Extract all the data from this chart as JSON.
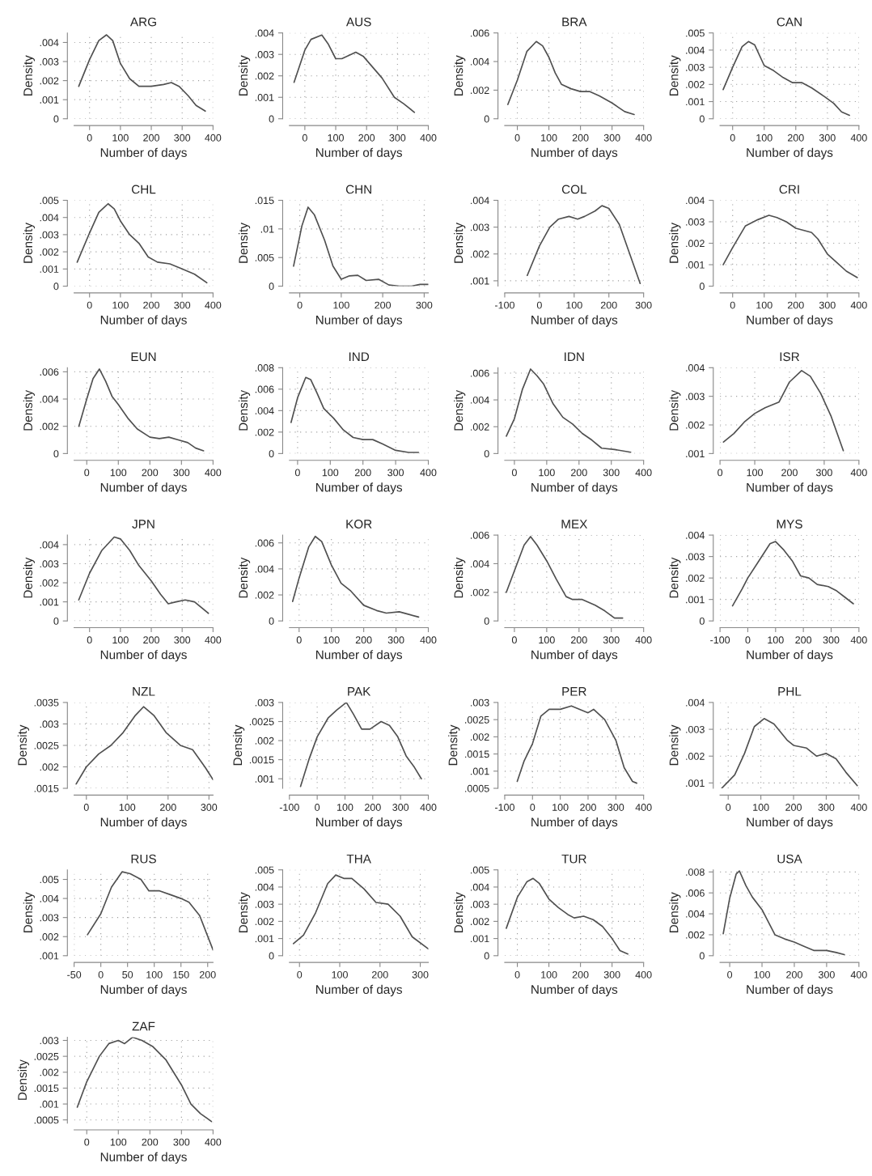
{
  "chart_data": [
    {
      "type": "line",
      "title": "ARG",
      "xlabel": "Number of days",
      "ylabel": "Density",
      "color": "#505050",
      "grid": true,
      "xlim": [
        -50,
        400
      ],
      "ylim": [
        0,
        0.0045
      ],
      "xticks": [
        0,
        100,
        200,
        300,
        400
      ],
      "yticks": [
        0,
        {
          "value": 0.001,
          "label": ".001"
        },
        {
          "value": 0.002,
          "label": ".002"
        },
        {
          "value": 0.003,
          "label": ".003"
        },
        {
          "value": 0.004,
          "label": ".004"
        }
      ],
      "x": [
        -35,
        0,
        30,
        55,
        75,
        100,
        130,
        160,
        200,
        240,
        265,
        290,
        320,
        345,
        375
      ],
      "values": [
        0.0017,
        0.0031,
        0.0041,
        0.0044,
        0.0041,
        0.0029,
        0.0021,
        0.0017,
        0.0017,
        0.0018,
        0.0019,
        0.0017,
        0.0012,
        0.0007,
        0.0004
      ]
    },
    {
      "type": "line",
      "title": "AUS",
      "xlabel": "Number of days",
      "ylabel": "Density",
      "color": "#505050",
      "grid": true,
      "xlim": [
        -50,
        400
      ],
      "ylim": [
        0,
        0.004
      ],
      "xticks": [
        0,
        100,
        200,
        300,
        400
      ],
      "yticks": [
        0,
        {
          "value": 0.001,
          "label": ".001"
        },
        {
          "value": 0.002,
          "label": ".002"
        },
        {
          "value": 0.003,
          "label": ".003"
        },
        {
          "value": 0.004,
          "label": ".004"
        }
      ],
      "x": [
        -35,
        0,
        20,
        55,
        75,
        100,
        120,
        165,
        190,
        220,
        250,
        290,
        320,
        355
      ],
      "values": [
        0.0017,
        0.0032,
        0.0037,
        0.0039,
        0.0035,
        0.0028,
        0.0028,
        0.0031,
        0.0029,
        0.0024,
        0.0019,
        0.001,
        0.0007,
        0.0003
      ]
    },
    {
      "type": "line",
      "title": "BRA",
      "xlabel": "Number of days",
      "ylabel": "Density",
      "color": "#505050",
      "grid": true,
      "xlim": [
        -40,
        400
      ],
      "ylim": [
        0,
        0.006
      ],
      "xticks": [
        0,
        100,
        200,
        300,
        400
      ],
      "yticks": [
        0,
        {
          "value": 0.002,
          "label": ".002"
        },
        {
          "value": 0.004,
          "label": ".004"
        },
        {
          "value": 0.006,
          "label": ".006"
        }
      ],
      "x": [
        -30,
        0,
        30,
        60,
        80,
        100,
        120,
        140,
        170,
        200,
        230,
        260,
        300,
        340,
        370
      ],
      "values": [
        0.001,
        0.0027,
        0.0047,
        0.0054,
        0.0051,
        0.0043,
        0.0032,
        0.0024,
        0.0021,
        0.0019,
        0.0019,
        0.0016,
        0.0011,
        0.0005,
        0.0003
      ]
    },
    {
      "type": "line",
      "title": "CAN",
      "xlabel": "Number of days",
      "ylabel": "Density",
      "color": "#505050",
      "grid": true,
      "xlim": [
        -40,
        400
      ],
      "ylim": [
        0,
        0.005
      ],
      "xticks": [
        0,
        100,
        200,
        300,
        400
      ],
      "yticks": [
        0,
        {
          "value": 0.001,
          "label": ".001"
        },
        {
          "value": 0.002,
          "label": ".002"
        },
        {
          "value": 0.003,
          "label": ".003"
        },
        {
          "value": 0.004,
          "label": ".004"
        },
        {
          "value": 0.005,
          "label": ".005"
        }
      ],
      "x": [
        -30,
        0,
        30,
        50,
        70,
        100,
        130,
        160,
        190,
        220,
        250,
        290,
        320,
        345,
        370
      ],
      "values": [
        0.0017,
        0.003,
        0.0042,
        0.0045,
        0.0043,
        0.0031,
        0.0028,
        0.0024,
        0.0021,
        0.0021,
        0.0018,
        0.0013,
        0.0009,
        0.0004,
        0.0002
      ]
    },
    {
      "type": "line",
      "title": "CHL",
      "xlabel": "Number of days",
      "ylabel": "Density",
      "color": "#505050",
      "grid": true,
      "xlim": [
        -50,
        400
      ],
      "ylim": [
        0,
        0.005
      ],
      "xticks": [
        0,
        100,
        200,
        300,
        400
      ],
      "yticks": [
        0,
        {
          "value": 0.001,
          "label": ".001"
        },
        {
          "value": 0.002,
          "label": ".002"
        },
        {
          "value": 0.003,
          "label": ".003"
        },
        {
          "value": 0.004,
          "label": ".004"
        },
        {
          "value": 0.005,
          "label": ".005"
        }
      ],
      "x": [
        -40,
        0,
        30,
        60,
        80,
        100,
        130,
        160,
        190,
        220,
        260,
        300,
        340,
        380
      ],
      "values": [
        0.0014,
        0.0031,
        0.0043,
        0.0048,
        0.0045,
        0.0038,
        0.003,
        0.0025,
        0.0017,
        0.0014,
        0.0013,
        0.001,
        0.0007,
        0.0002
      ]
    },
    {
      "type": "line",
      "title": "CHN",
      "xlabel": "Number of days",
      "ylabel": "Density",
      "color": "#505050",
      "grid": true,
      "xlim": [
        -25,
        310
      ],
      "ylim": [
        0,
        0.015
      ],
      "xticks": [
        0,
        100,
        200,
        300
      ],
      "yticks": [
        0,
        {
          "value": 0.005,
          "label": ".005"
        },
        {
          "value": 0.01,
          "label": ".01"
        },
        {
          "value": 0.015,
          "label": ".015"
        }
      ],
      "x": [
        -15,
        5,
        20,
        35,
        60,
        80,
        100,
        120,
        140,
        160,
        190,
        215,
        240,
        270,
        290,
        310
      ],
      "values": [
        0.0035,
        0.0105,
        0.0138,
        0.0125,
        0.008,
        0.0035,
        0.0012,
        0.0018,
        0.0019,
        0.001,
        0.0012,
        0.0002,
        0.0,
        0.0,
        0.0003,
        0.0003
      ]
    },
    {
      "type": "line",
      "title": "COL",
      "xlabel": "Number of days",
      "ylabel": "Density",
      "color": "#505050",
      "grid": true,
      "xlim": [
        -100,
        300
      ],
      "ylim": [
        0.0008,
        0.004
      ],
      "xticks": [
        -100,
        0,
        100,
        200,
        300
      ],
      "yticks": [
        {
          "value": 0.001,
          "label": ".001"
        },
        {
          "value": 0.002,
          "label": ".002"
        },
        {
          "value": 0.003,
          "label": ".003"
        },
        {
          "value": 0.004,
          "label": ".004"
        }
      ],
      "x": [
        -35,
        0,
        30,
        55,
        85,
        110,
        130,
        160,
        180,
        200,
        230,
        260,
        290
      ],
      "values": [
        0.0012,
        0.0023,
        0.003,
        0.0033,
        0.0034,
        0.0033,
        0.0034,
        0.0036,
        0.0038,
        0.0037,
        0.0031,
        0.002,
        0.0009
      ]
    },
    {
      "type": "line",
      "title": "CRI",
      "xlabel": "Number of days",
      "ylabel": "Density",
      "color": "#505050",
      "grid": true,
      "xlim": [
        -40,
        400
      ],
      "ylim": [
        0,
        0.004
      ],
      "xticks": [
        0,
        100,
        200,
        300,
        400
      ],
      "yticks": [
        0,
        {
          "value": 0.001,
          "label": ".001"
        },
        {
          "value": 0.002,
          "label": ".002"
        },
        {
          "value": 0.003,
          "label": ".003"
        },
        {
          "value": 0.004,
          "label": ".004"
        }
      ],
      "x": [
        -30,
        0,
        40,
        80,
        115,
        140,
        170,
        200,
        250,
        270,
        300,
        330,
        360,
        395
      ],
      "values": [
        0.001,
        0.0018,
        0.0028,
        0.0031,
        0.0033,
        0.0032,
        0.003,
        0.0027,
        0.0025,
        0.0022,
        0.0015,
        0.0011,
        0.0007,
        0.0004
      ]
    },
    {
      "type": "line",
      "title": "EUN",
      "xlabel": "Number of days",
      "ylabel": "Density",
      "color": "#505050",
      "grid": true,
      "xlim": [
        -40,
        400
      ],
      "ylim": [
        0,
        0.0063
      ],
      "xticks": [
        0,
        100,
        200,
        300,
        400
      ],
      "yticks": [
        0,
        {
          "value": 0.002,
          "label": ".002"
        },
        {
          "value": 0.004,
          "label": ".004"
        },
        {
          "value": 0.006,
          "label": ".006"
        }
      ],
      "x": [
        -25,
        0,
        20,
        40,
        60,
        80,
        100,
        130,
        160,
        200,
        230,
        260,
        290,
        320,
        345,
        370
      ],
      "values": [
        0.002,
        0.004,
        0.0055,
        0.0062,
        0.0053,
        0.0042,
        0.0036,
        0.0026,
        0.0018,
        0.0012,
        0.0011,
        0.0012,
        0.001,
        0.0008,
        0.0004,
        0.0002
      ]
    },
    {
      "type": "line",
      "title": "IND",
      "xlabel": "Number of days",
      "ylabel": "Density",
      "color": "#505050",
      "grid": true,
      "xlim": [
        -25,
        400
      ],
      "ylim": [
        0,
        0.008
      ],
      "xticks": [
        0,
        100,
        200,
        300,
        400
      ],
      "yticks": [
        0,
        {
          "value": 0.002,
          "label": ".002"
        },
        {
          "value": 0.004,
          "label": ".004"
        },
        {
          "value": 0.006,
          "label": ".006"
        },
        {
          "value": 0.008,
          "label": ".008"
        }
      ],
      "x": [
        -20,
        0,
        25,
        40,
        60,
        80,
        110,
        140,
        170,
        200,
        230,
        260,
        300,
        340,
        370
      ],
      "values": [
        0.0029,
        0.0052,
        0.0071,
        0.0069,
        0.0056,
        0.0042,
        0.0033,
        0.0022,
        0.0015,
        0.0013,
        0.0013,
        0.0009,
        0.0003,
        0.0001,
        0.0001
      ]
    },
    {
      "type": "line",
      "title": "IDN",
      "xlabel": "Number of days",
      "ylabel": "Density",
      "color": "#505050",
      "grid": true,
      "xlim": [
        -30,
        400
      ],
      "ylim": [
        0,
        0.0064
      ],
      "xticks": [
        0,
        100,
        200,
        300,
        400
      ],
      "yticks": [
        0,
        {
          "value": 0.002,
          "label": ".002"
        },
        {
          "value": 0.004,
          "label": ".004"
        },
        {
          "value": 0.006,
          "label": ".006"
        }
      ],
      "x": [
        -25,
        0,
        25,
        50,
        70,
        90,
        120,
        150,
        180,
        210,
        240,
        270,
        310,
        360
      ],
      "values": [
        0.0013,
        0.0026,
        0.0048,
        0.0063,
        0.0058,
        0.0052,
        0.0037,
        0.0027,
        0.0022,
        0.0015,
        0.001,
        0.0004,
        0.0003,
        0.0001
      ]
    },
    {
      "type": "line",
      "title": "ISR",
      "xlabel": "Number of days",
      "ylabel": "Density",
      "color": "#505050",
      "grid": true,
      "xlim": [
        0,
        400
      ],
      "ylim": [
        0.001,
        0.004
      ],
      "xticks": [
        0,
        100,
        200,
        300,
        400
      ],
      "yticks": [
        {
          "value": 0.001,
          "label": ".001"
        },
        {
          "value": 0.002,
          "label": ".002"
        },
        {
          "value": 0.003,
          "label": ".003"
        },
        {
          "value": 0.004,
          "label": ".004"
        }
      ],
      "x": [
        10,
        40,
        70,
        100,
        130,
        150,
        170,
        200,
        235,
        260,
        290,
        320,
        355
      ],
      "values": [
        0.0014,
        0.0017,
        0.0021,
        0.0024,
        0.0026,
        0.0027,
        0.0028,
        0.0035,
        0.0039,
        0.0037,
        0.0031,
        0.0023,
        0.0011
      ]
    },
    {
      "type": "line",
      "title": "JPN",
      "xlabel": "Number of days",
      "ylabel": "Density",
      "color": "#505050",
      "grid": true,
      "xlim": [
        -50,
        400
      ],
      "ylim": [
        0,
        0.0045
      ],
      "xticks": [
        0,
        100,
        200,
        300,
        400
      ],
      "yticks": [
        0,
        {
          "value": 0.001,
          "label": ".001"
        },
        {
          "value": 0.002,
          "label": ".002"
        },
        {
          "value": 0.003,
          "label": ".003"
        },
        {
          "value": 0.004,
          "label": ".004"
        }
      ],
      "x": [
        -35,
        0,
        40,
        80,
        100,
        130,
        160,
        200,
        230,
        255,
        280,
        310,
        340,
        385
      ],
      "values": [
        0.0011,
        0.0025,
        0.0037,
        0.0044,
        0.0043,
        0.0037,
        0.0029,
        0.0021,
        0.0014,
        0.0009,
        0.001,
        0.0011,
        0.001,
        0.0004
      ]
    },
    {
      "type": "line",
      "title": "KOR",
      "xlabel": "Number of days",
      "ylabel": "Density",
      "color": "#505050",
      "grid": true,
      "xlim": [
        -30,
        400
      ],
      "ylim": [
        0,
        0.0066
      ],
      "xticks": [
        0,
        100,
        200,
        300,
        400
      ],
      "yticks": [
        0,
        {
          "value": 0.002,
          "label": ".002"
        },
        {
          "value": 0.004,
          "label": ".004"
        },
        {
          "value": 0.006,
          "label": ".006"
        }
      ],
      "x": [
        -20,
        0,
        30,
        50,
        70,
        100,
        130,
        160,
        200,
        240,
        270,
        310,
        340,
        370
      ],
      "values": [
        0.0015,
        0.0033,
        0.0057,
        0.0065,
        0.0061,
        0.0043,
        0.0029,
        0.0023,
        0.0012,
        0.0008,
        0.0006,
        0.0007,
        0.0005,
        0.0003
      ]
    },
    {
      "type": "line",
      "title": "MEX",
      "xlabel": "Number of days",
      "ylabel": "Density",
      "color": "#505050",
      "grid": true,
      "xlim": [
        -30,
        400
      ],
      "ylim": [
        0,
        0.006
      ],
      "xticks": [
        0,
        100,
        200,
        300,
        400
      ],
      "yticks": [
        0,
        {
          "value": 0.002,
          "label": ".002"
        },
        {
          "value": 0.004,
          "label": ".004"
        },
        {
          "value": 0.006,
          "label": ".006"
        }
      ],
      "x": [
        -25,
        0,
        30,
        50,
        70,
        100,
        130,
        160,
        180,
        210,
        250,
        280,
        310,
        335
      ],
      "values": [
        0.002,
        0.0035,
        0.0053,
        0.0059,
        0.0053,
        0.0042,
        0.0029,
        0.0017,
        0.0015,
        0.0015,
        0.0011,
        0.0007,
        0.0002,
        0.0002
      ]
    },
    {
      "type": "line",
      "title": "MYS",
      "xlabel": "Number of days",
      "ylabel": "Density",
      "color": "#505050",
      "grid": true,
      "xlim": [
        -100,
        400
      ],
      "ylim": [
        0,
        0.004
      ],
      "xticks": [
        -100,
        0,
        100,
        200,
        300,
        400
      ],
      "yticks": [
        0,
        {
          "value": 0.001,
          "label": ".001"
        },
        {
          "value": 0.002,
          "label": ".002"
        },
        {
          "value": 0.003,
          "label": ".003"
        },
        {
          "value": 0.004,
          "label": ".004"
        }
      ],
      "x": [
        -55,
        -20,
        0,
        40,
        80,
        100,
        130,
        160,
        190,
        220,
        250,
        290,
        320,
        350,
        380
      ],
      "values": [
        0.0007,
        0.0015,
        0.002,
        0.0028,
        0.0036,
        0.0037,
        0.0033,
        0.0028,
        0.0021,
        0.002,
        0.0017,
        0.0016,
        0.0014,
        0.0011,
        0.0008
      ]
    },
    {
      "type": "line",
      "title": "NZL",
      "xlabel": "Number of days",
      "ylabel": "Density",
      "color": "#505050",
      "grid": true,
      "xlim": [
        -30,
        310
      ],
      "ylim": [
        0.0015,
        0.0035
      ],
      "xticks": [
        0,
        100,
        200,
        300
      ],
      "yticks": [
        {
          "value": 0.0015,
          "label": ".0015"
        },
        {
          "value": 0.002,
          "label": ".002"
        },
        {
          "value": 0.0025,
          "label": ".0025"
        },
        {
          "value": 0.003,
          "label": ".003"
        },
        {
          "value": 0.0035,
          "label": ".0035"
        }
      ],
      "x": [
        -25,
        0,
        30,
        60,
        90,
        120,
        140,
        165,
        195,
        230,
        260,
        290,
        310
      ],
      "values": [
        0.0016,
        0.002,
        0.0023,
        0.0025,
        0.0028,
        0.0032,
        0.0034,
        0.0032,
        0.0028,
        0.0025,
        0.0024,
        0.002,
        0.0017
      ]
    },
    {
      "type": "line",
      "title": "PAK",
      "xlabel": "Number of days",
      "ylabel": "Density",
      "color": "#505050",
      "grid": true,
      "xlim": [
        -100,
        400
      ],
      "ylim": [
        0.00075,
        0.003
      ],
      "xticks": [
        -100,
        0,
        100,
        200,
        300,
        400
      ],
      "yticks": [
        {
          "value": 0.001,
          "label": ".001"
        },
        {
          "value": 0.0015,
          "label": ".0015"
        },
        {
          "value": 0.002,
          "label": ".002"
        },
        {
          "value": 0.0025,
          "label": ".0025"
        },
        {
          "value": 0.003,
          "label": ".003"
        }
      ],
      "x": [
        -60,
        -30,
        0,
        40,
        70,
        105,
        130,
        160,
        190,
        230,
        260,
        290,
        320,
        350,
        375
      ],
      "values": [
        0.0008,
        0.0015,
        0.0021,
        0.0026,
        0.0028,
        0.003,
        0.0027,
        0.0023,
        0.0023,
        0.0025,
        0.0024,
        0.0021,
        0.0016,
        0.0013,
        0.001
      ]
    },
    {
      "type": "line",
      "title": "PER",
      "xlabel": "Number of days",
      "ylabel": "Density",
      "color": "#505050",
      "grid": true,
      "xlim": [
        -100,
        400
      ],
      "ylim": [
        0.0005,
        0.003
      ],
      "xticks": [
        -100,
        0,
        100,
        200,
        300,
        400
      ],
      "yticks": [
        {
          "value": 0.0005,
          "label": ".0005"
        },
        {
          "value": 0.001,
          "label": ".001"
        },
        {
          "value": 0.0015,
          "label": ".0015"
        },
        {
          "value": 0.002,
          "label": ".002"
        },
        {
          "value": 0.0025,
          "label": ".0025"
        },
        {
          "value": 0.003,
          "label": ".003"
        }
      ],
      "x": [
        -55,
        -30,
        0,
        30,
        60,
        100,
        140,
        170,
        200,
        220,
        260,
        300,
        330,
        360,
        375
      ],
      "values": [
        0.0007,
        0.0013,
        0.0018,
        0.0026,
        0.0028,
        0.0028,
        0.0029,
        0.0028,
        0.0027,
        0.0028,
        0.0025,
        0.0019,
        0.0011,
        0.0007,
        0.00065
      ]
    },
    {
      "type": "line",
      "title": "PHL",
      "xlabel": "Number of days",
      "ylabel": "Density",
      "color": "#505050",
      "grid": true,
      "xlim": [
        -25,
        400
      ],
      "ylim": [
        0.0008,
        0.004
      ],
      "xticks": [
        0,
        100,
        200,
        300,
        400
      ],
      "yticks": [
        {
          "value": 0.001,
          "label": ".001"
        },
        {
          "value": 0.002,
          "label": ".002"
        },
        {
          "value": 0.003,
          "label": ".003"
        },
        {
          "value": 0.004,
          "label": ".004"
        }
      ],
      "x": [
        -20,
        20,
        50,
        80,
        110,
        140,
        180,
        200,
        240,
        270,
        300,
        330,
        360,
        395
      ],
      "values": [
        0.0008,
        0.0013,
        0.0021,
        0.0031,
        0.0034,
        0.0032,
        0.0026,
        0.0024,
        0.0023,
        0.002,
        0.0021,
        0.0019,
        0.0014,
        0.0009
      ]
    },
    {
      "type": "line",
      "title": "RUS",
      "xlabel": "Number of days",
      "ylabel": "Density",
      "color": "#505050",
      "grid": true,
      "xlim": [
        -50,
        210
      ],
      "ylim": [
        0.001,
        0.0055
      ],
      "xticks": [
        -50,
        0,
        50,
        100,
        150,
        200
      ],
      "yticks": [
        {
          "value": 0.001,
          "label": ".001"
        },
        {
          "value": 0.002,
          "label": ".002"
        },
        {
          "value": 0.003,
          "label": ".003"
        },
        {
          "value": 0.004,
          "label": ".004"
        },
        {
          "value": 0.005,
          "label": ".005"
        }
      ],
      "x": [
        -25,
        0,
        20,
        40,
        55,
        75,
        90,
        110,
        130,
        150,
        165,
        185,
        210
      ],
      "values": [
        0.0021,
        0.0032,
        0.0046,
        0.0054,
        0.0053,
        0.005,
        0.0044,
        0.0044,
        0.0042,
        0.004,
        0.0038,
        0.0031,
        0.0013
      ]
    },
    {
      "type": "line",
      "title": "THA",
      "xlabel": "Number of days",
      "ylabel": "Density",
      "color": "#505050",
      "grid": true,
      "xlim": [
        -25,
        320
      ],
      "ylim": [
        0,
        0.005
      ],
      "xticks": [
        0,
        100,
        200,
        300
      ],
      "yticks": [
        0,
        {
          "value": 0.001,
          "label": ".001"
        },
        {
          "value": 0.002,
          "label": ".002"
        },
        {
          "value": 0.003,
          "label": ".003"
        },
        {
          "value": 0.004,
          "label": ".004"
        },
        {
          "value": 0.005,
          "label": ".005"
        }
      ],
      "x": [
        -15,
        10,
        40,
        70,
        90,
        110,
        130,
        160,
        190,
        220,
        250,
        280,
        320
      ],
      "values": [
        0.0007,
        0.0012,
        0.0025,
        0.0042,
        0.0047,
        0.0045,
        0.0045,
        0.0039,
        0.0031,
        0.003,
        0.0023,
        0.0011,
        0.0004
      ]
    },
    {
      "type": "line",
      "title": "TUR",
      "xlabel": "Number of days",
      "ylabel": "Density",
      "color": "#505050",
      "grid": true,
      "xlim": [
        -40,
        400
      ],
      "ylim": [
        0,
        0.005
      ],
      "xticks": [
        0,
        100,
        200,
        300,
        400
      ],
      "yticks": [
        0,
        {
          "value": 0.001,
          "label": ".001"
        },
        {
          "value": 0.002,
          "label": ".002"
        },
        {
          "value": 0.003,
          "label": ".003"
        },
        {
          "value": 0.004,
          "label": ".004"
        },
        {
          "value": 0.005,
          "label": ".005"
        }
      ],
      "x": [
        -35,
        0,
        30,
        50,
        70,
        100,
        130,
        160,
        180,
        210,
        240,
        270,
        300,
        325,
        350
      ],
      "values": [
        0.0016,
        0.0034,
        0.0043,
        0.0045,
        0.0042,
        0.0033,
        0.0028,
        0.0024,
        0.0022,
        0.0023,
        0.0021,
        0.0017,
        0.001,
        0.0003,
        0.0001
      ]
    },
    {
      "type": "line",
      "title": "USA",
      "xlabel": "Number of days",
      "ylabel": "Density",
      "color": "#505050",
      "grid": true,
      "xlim": [
        -30,
        400
      ],
      "ylim": [
        0,
        0.0082
      ],
      "xticks": [
        0,
        100,
        200,
        300,
        400
      ],
      "yticks": [
        0,
        {
          "value": 0.002,
          "label": ".002"
        },
        {
          "value": 0.004,
          "label": ".004"
        },
        {
          "value": 0.006,
          "label": ".006"
        },
        {
          "value": 0.008,
          "label": ".008"
        }
      ],
      "x": [
        -20,
        0,
        20,
        30,
        50,
        70,
        100,
        120,
        140,
        170,
        200,
        230,
        260,
        300,
        330,
        355
      ],
      "values": [
        0.0021,
        0.0055,
        0.0078,
        0.0081,
        0.0067,
        0.0056,
        0.0044,
        0.0032,
        0.002,
        0.0016,
        0.0013,
        0.0009,
        0.0005,
        0.0005,
        0.0003,
        0.0001
      ]
    },
    {
      "type": "line",
      "title": "ZAF",
      "xlabel": "Number of days",
      "ylabel": "Density",
      "color": "#505050",
      "grid": true,
      "xlim": [
        -40,
        400
      ],
      "ylim": [
        0.0004,
        0.0031
      ],
      "xticks": [
        0,
        100,
        200,
        300,
        400
      ],
      "yticks": [
        {
          "value": 0.0005,
          "label": ".0005"
        },
        {
          "value": 0.001,
          "label": ".001"
        },
        {
          "value": 0.0015,
          "label": ".0015"
        },
        {
          "value": 0.002,
          "label": ".002"
        },
        {
          "value": 0.0025,
          "label": ".0025"
        },
        {
          "value": 0.003,
          "label": ".003"
        }
      ],
      "x": [
        -30,
        0,
        40,
        70,
        100,
        120,
        145,
        175,
        210,
        250,
        300,
        330,
        360,
        395
      ],
      "values": [
        0.0009,
        0.0017,
        0.0025,
        0.0029,
        0.003,
        0.0029,
        0.0031,
        0.003,
        0.0028,
        0.0024,
        0.0016,
        0.001,
        0.0007,
        0.00045
      ]
    }
  ]
}
